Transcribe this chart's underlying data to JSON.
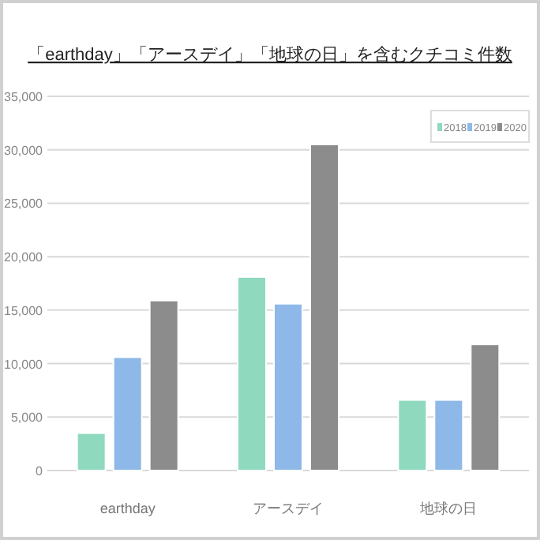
{
  "chart_data": {
    "type": "bar",
    "title": "「earthday」「アースデイ」「地球の日」を含むクチコミ件数",
    "categories": [
      "earthday",
      "アースデイ",
      "地球の日"
    ],
    "series": [
      {
        "name": "2018",
        "color": "#8fd9bf",
        "values": [
          3500,
          18100,
          6600
        ]
      },
      {
        "name": "2019",
        "color": "#8db8e8",
        "values": [
          10600,
          15600,
          6600
        ]
      },
      {
        "name": "2020",
        "color": "#8c8c8c",
        "values": [
          15900,
          30500,
          11800
        ]
      }
    ],
    "ylim": [
      0,
      35000
    ],
    "yticks": [
      {
        "value": 0,
        "label": "0"
      },
      {
        "value": 5000,
        "label": "5,000"
      },
      {
        "value": 10000,
        "label": "10,000"
      },
      {
        "value": 15000,
        "label": "15,000"
      },
      {
        "value": 20000,
        "label": "20,000"
      },
      {
        "value": 25000,
        "label": "25,000"
      },
      {
        "value": 30000,
        "label": "30,000"
      },
      {
        "value": 35000,
        "label": "35,000"
      }
    ],
    "grid": "y",
    "legend": "top right"
  }
}
